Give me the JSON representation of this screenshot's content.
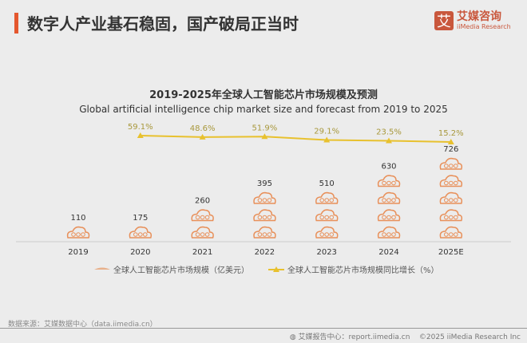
{
  "header": {
    "title": "数字人产业基石稳固，国产破局正当时"
  },
  "logo": {
    "mark": "艾",
    "cn": "艾媒咨询",
    "en": "iiMedia Research"
  },
  "colors": {
    "accent": "#e4572e",
    "icon": "#e8905a",
    "line": "#e8c12e"
  },
  "chart_data": {
    "type": "bar+line",
    "title": "2019-2025年全球人工智能芯片市场规模及预测",
    "subtitle": "Global artificial intelligence chip market size and forecast from 2019 to 2025",
    "categories": [
      "2019",
      "2020",
      "2021",
      "2022",
      "2023",
      "2024",
      "2025E"
    ],
    "series": [
      {
        "name": "全球人工智能芯片市场规模（亿美元）",
        "kind": "pictograph",
        "values": [
          110,
          175,
          260,
          395,
          510,
          630,
          726
        ],
        "labels": [
          "110",
          "175",
          "260",
          "395",
          "510",
          "630",
          "726"
        ]
      },
      {
        "name": "全球人工智能芯片市场规模同比增长（%）",
        "kind": "line",
        "values": [
          null,
          59.1,
          48.6,
          51.9,
          29.1,
          23.5,
          15.2
        ],
        "labels": [
          "",
          "59.1%",
          "48.6%",
          "51.9%",
          "29.1%",
          "23.5%",
          "15.2%"
        ]
      }
    ],
    "legend": "bottom",
    "grid": false
  },
  "footer": {
    "source": "数据来源：艾媒数据中心（data.iimedia.cn）",
    "report": "艾媒报告中心：report.iimedia.cn",
    "copyright": "©2025  iiMedia Research  Inc"
  }
}
